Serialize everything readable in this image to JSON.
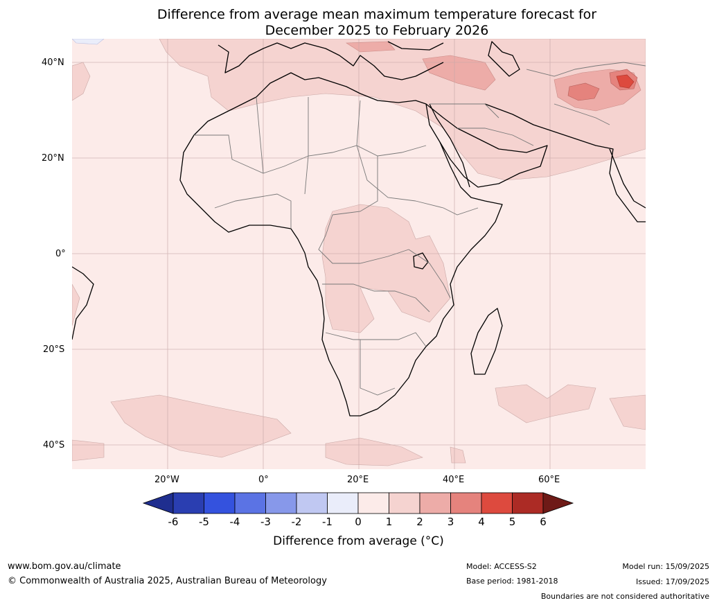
{
  "title": {
    "line1": "Difference from average mean maximum temperature forecast for",
    "line2": "December 2025 to February 2026"
  },
  "map": {
    "lat_labels": [
      "40°N",
      "20°N",
      "0°",
      "20°S",
      "40°S"
    ],
    "lon_labels": [
      "20°W",
      "0°",
      "20°E",
      "40°E",
      "60°E"
    ],
    "extent": {
      "lon": [
        -40,
        80
      ],
      "lat": [
        -45,
        45
      ]
    }
  },
  "colorbar": {
    "ticks": [
      "-6",
      "-5",
      "-4",
      "-3",
      "-2",
      "-1",
      "0",
      "1",
      "2",
      "3",
      "4",
      "5",
      "6"
    ],
    "colors": [
      "#1f2e8f",
      "#2a3eb1",
      "#3452de",
      "#5b73e4",
      "#8798ea",
      "#c0c8f2",
      "#eaedfa",
      "#fcebe9",
      "#f5d3d0",
      "#edaca8",
      "#e5837d",
      "#dd4a3e",
      "#ac2b25",
      "#6e1a17"
    ],
    "label": "Difference from average (°C)"
  },
  "footer": {
    "website": "www.bom.gov.au/climate",
    "copyright": "© Commonwealth of Australia 2025, Australian Bureau of Meteorology",
    "model": "Model: ACCESS-S2",
    "base_period": "Base period: 1981-2018",
    "model_run": "Model run: 15/09/2025",
    "issued": "Issued: 17/09/2025",
    "disclaimer": "Boundaries are not considered authoritative"
  }
}
